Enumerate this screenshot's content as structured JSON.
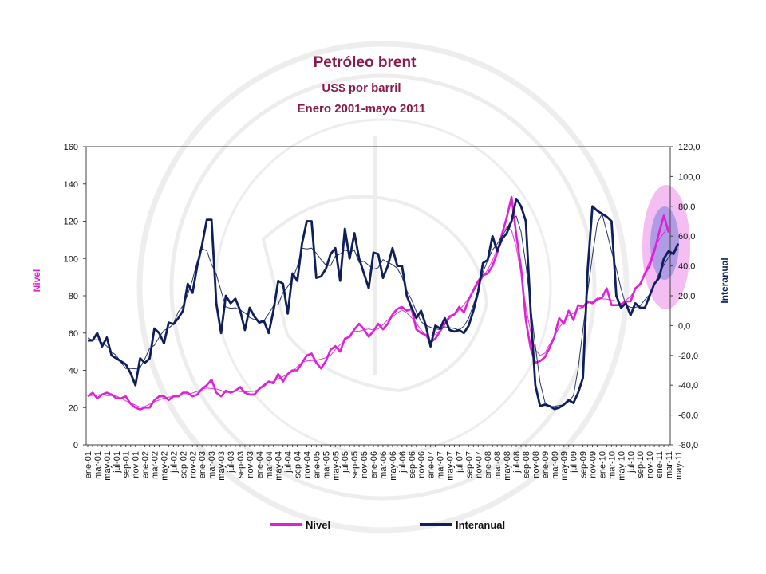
{
  "chart_data": {
    "type": "line",
    "title": "Petróleo brent",
    "subtitle": "US$ por barril",
    "period": "Enero 2001-mayo 2011",
    "ylabel_left": "Nivel",
    "ylabel_right": "Interanual",
    "ylim_left": [
      0,
      160
    ],
    "ylim_right": [
      -80,
      120
    ],
    "yticks_left": [
      "0",
      "20",
      "40",
      "60",
      "80",
      "100",
      "120",
      "140",
      "160"
    ],
    "yticks_right": [
      "-80,0",
      "-60,0",
      "-40,0",
      "-20,0",
      "0,0",
      "20,0",
      "40,0",
      "60,0",
      "80,0",
      "100,0",
      "120,0"
    ],
    "xtick_labels": [
      "ene-01",
      "mar-01",
      "may-01",
      "jul-01",
      "sep-01",
      "nov-01",
      "ene-02",
      "mar-02",
      "may-02",
      "jul-02",
      "sep-02",
      "nov-02",
      "ene-03",
      "mar-03",
      "may-03",
      "jul-03",
      "sep-03",
      "nov-03",
      "ene-04",
      "mar-04",
      "may-04",
      "jul-04",
      "sep-04",
      "nov-04",
      "ene-05",
      "mar-05",
      "may-05",
      "jul-05",
      "sep-05",
      "nov-05",
      "ene-06",
      "mar-06",
      "may-06",
      "jul-06",
      "sep-06",
      "nov-06",
      "ene-07",
      "mar-07",
      "may-07",
      "jul-07",
      "sep-07",
      "nov-07",
      "ene-08",
      "mar-08",
      "may-08",
      "jul-08",
      "sep-08",
      "nov-08",
      "ene-09",
      "mar-09",
      "may-09",
      "jul-09",
      "sep-09",
      "nov-09",
      "ene-10",
      "mar-10",
      "may-10",
      "jul-10",
      "sep-10",
      "nov-10",
      "ene-11",
      "mar-11",
      "may-11"
    ],
    "legend_position": "bottom",
    "series": [
      {
        "name": "Nivel",
        "axis": "left",
        "color": "#e020d8",
        "values": [
          26,
          28,
          25,
          27,
          28,
          27,
          25,
          25,
          26,
          22,
          20,
          19,
          20,
          20,
          24,
          26,
          26,
          24,
          26,
          26,
          28,
          28,
          26,
          27,
          30,
          32,
          35,
          28,
          26,
          29,
          28,
          29,
          31,
          28,
          27,
          27,
          30,
          32,
          34,
          33,
          38,
          34,
          38,
          40,
          40,
          44,
          48,
          49,
          44,
          41,
          45,
          51,
          53,
          50,
          57,
          58,
          62,
          65,
          62,
          58,
          61,
          65,
          62,
          65,
          70,
          73,
          74,
          72,
          73,
          62,
          60,
          59,
          55,
          57,
          61,
          65,
          69,
          70,
          74,
          71,
          78,
          83,
          88,
          91,
          92,
          96,
          103,
          113,
          122,
          133,
          113,
          95,
          67,
          52,
          44,
          45,
          47,
          52,
          58,
          68,
          65,
          72,
          67,
          75,
          74,
          77,
          76,
          78,
          79,
          84,
          75,
          75,
          75,
          77,
          77,
          84,
          86,
          92,
          96,
          104,
          114,
          123,
          114
        ]
      },
      {
        "name": "Interanual",
        "axis": "right",
        "color": "#0e1f5c",
        "values": [
          -10,
          -10,
          -5,
          -14,
          -8,
          -20,
          -22,
          -24,
          -26,
          -32,
          -40,
          -22,
          -25,
          -22,
          -2,
          -5,
          -12,
          2,
          1,
          5,
          10,
          28,
          22,
          40,
          54,
          71,
          71,
          15,
          -5,
          20,
          15,
          18,
          10,
          -3,
          12,
          6,
          2,
          3,
          -5,
          10,
          30,
          28,
          8,
          35,
          30,
          55,
          70,
          70,
          32,
          33,
          38,
          48,
          52,
          30,
          65,
          45,
          62,
          45,
          35,
          25,
          49,
          48,
          32,
          40,
          52,
          40,
          40,
          20,
          12,
          5,
          10,
          0,
          -14,
          0,
          -2,
          5,
          -3,
          -4,
          -3,
          -5,
          0,
          10,
          23,
          42,
          44,
          60,
          50,
          58,
          62,
          70,
          85,
          80,
          70,
          10,
          -40,
          -54,
          -53,
          -54,
          -56,
          -55,
          -53,
          -50,
          -52,
          -45,
          -35,
          38,
          80,
          77,
          75,
          73,
          70,
          20,
          12,
          15,
          7,
          15,
          12,
          12,
          20,
          28,
          32,
          45,
          50,
          48,
          55
        ]
      }
    ]
  }
}
